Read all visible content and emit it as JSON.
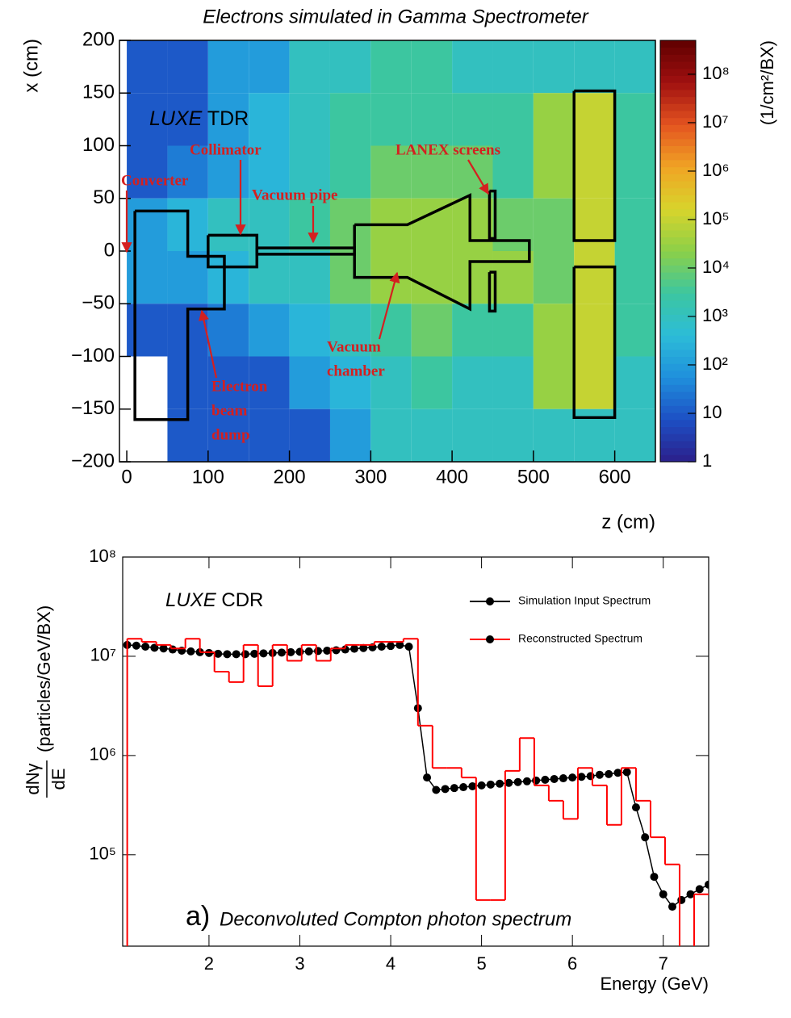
{
  "chart_data": [
    {
      "type": "heatmap",
      "title": "Electrons simulated in Gamma Spectrometer",
      "xlabel": "z (cm)",
      "ylabel": "x (cm)",
      "zlabel": "(1/cm²/BX)",
      "experiment": "LUXE",
      "document": "TDR",
      "xlim": [
        -9,
        650
      ],
      "ylim": [
        -200,
        200
      ],
      "zlim": [
        1,
        500000000
      ],
      "log_z": true,
      "xticks": [
        0,
        100,
        200,
        300,
        400,
        500,
        600
      ],
      "yticks": [
        {
          "value": -200,
          "label": "−200"
        },
        {
          "value": -150,
          "label": "−150"
        },
        {
          "value": -100,
          "label": "−100"
        },
        {
          "value": -50,
          "label": "−50"
        },
        0,
        50,
        100,
        150,
        200
      ],
      "zticks": [
        1,
        10,
        {
          "value": 100,
          "label": "10²"
        },
        {
          "value": 1000,
          "label": "10³"
        },
        {
          "value": 10000,
          "label": "10⁴"
        },
        {
          "value": 100000,
          "label": "10⁵"
        },
        {
          "value": 1000000,
          "label": "10⁶"
        },
        {
          "value": 10000000,
          "label": "10⁷"
        },
        {
          "value": 100000000,
          "label": "10⁸"
        }
      ],
      "colors": [
        "#2b1f8a",
        "#1d4fc4",
        "#1f8fdc",
        "#2cbcd8",
        "#3cc6a0",
        "#8cd048",
        "#d8d42c",
        "#f0a424",
        "#e45420",
        "#a01010",
        "#600000"
      ],
      "x_edges": [
        0,
        50,
        100,
        150,
        200,
        250,
        300,
        350,
        400,
        450,
        500,
        550,
        600,
        650
      ],
      "y_edges": [
        200,
        150,
        100,
        50,
        0,
        -50,
        -100,
        -150,
        -200
      ],
      "values": [
        [
          10,
          10,
          100,
          100,
          1000,
          1000,
          3000,
          3000,
          1000,
          1000,
          1000,
          1000,
          1000
        ],
        [
          10,
          10,
          100,
          300,
          1000,
          3000,
          3000,
          3000,
          3000,
          3000,
          30000,
          100000,
          3000
        ],
        [
          10,
          30,
          100,
          300,
          1000,
          3000,
          10000,
          10000,
          10000,
          3000,
          30000,
          100000,
          3000
        ],
        [
          100,
          300,
          1000,
          1000,
          3000,
          10000,
          30000,
          30000,
          30000,
          10000,
          10000,
          100000,
          3000
        ],
        [
          100,
          100,
          300,
          1000,
          1000,
          10000,
          30000,
          30000,
          30000,
          30000,
          10000,
          100000,
          3000
        ],
        [
          10,
          10,
          30,
          100,
          300,
          1000,
          3000,
          10000,
          3000,
          3000,
          30000,
          100000,
          3000
        ],
        [
          null,
          10,
          10,
          10,
          100,
          300,
          1000,
          3000,
          1000,
          1000,
          30000,
          100000,
          1000
        ],
        [
          null,
          10,
          10,
          10,
          10,
          100,
          1000,
          1000,
          1000,
          1000,
          1000,
          1000,
          1000
        ]
      ],
      "shapes": [
        {
          "z": [
            10,
            75,
            75,
            120,
            120,
            75,
            75,
            10,
            10
          ],
          "x": [
            38,
            38,
            -5,
            -5,
            -55,
            -55,
            -160,
            -160,
            38
          ]
        },
        {
          "z": [
            100,
            160,
            160,
            100,
            100
          ],
          "x": [
            15,
            15,
            -15,
            -15,
            15
          ]
        },
        {
          "z": [
            160,
            280,
            280,
            160,
            160
          ],
          "x": [
            3,
            3,
            -3,
            -3,
            3
          ]
        },
        {
          "z": [
            280,
            345,
            422,
            422,
            495,
            495,
            422,
            422,
            345,
            280,
            280
          ],
          "x": [
            25,
            25,
            53,
            10,
            10,
            -10,
            -10,
            -55,
            -25,
            -25,
            25
          ]
        },
        {
          "z": [
            446,
            453,
            453,
            446,
            446
          ],
          "x": [
            57,
            57,
            12,
            12,
            57
          ]
        },
        {
          "z": [
            446,
            453,
            453,
            446,
            446
          ],
          "x": [
            -20,
            -20,
            -57,
            -57,
            -20
          ]
        },
        {
          "z": [
            550,
            600,
            600,
            550,
            550
          ],
          "x": [
            152,
            152,
            10,
            10,
            152
          ]
        },
        {
          "z": [
            550,
            600,
            600,
            550,
            550
          ],
          "x": [
            -15,
            -15,
            -158,
            -158,
            -15
          ]
        }
      ],
      "annotations": [
        [
          "Converter"
        ],
        [
          "Collimator"
        ],
        [
          "Vacuum pipe"
        ],
        [
          "LANEX screens"
        ],
        [
          "Vacuum",
          "chamber"
        ],
        [
          "Electron",
          "beam",
          "dump"
        ]
      ]
    },
    {
      "type": "line",
      "xlabel": "Energy (GeV)",
      "ylabel": {
        "numerator": "dNγ",
        "denominator": "dE",
        "unit": "(particles/GeV/BX)"
      },
      "experiment": "LUXE",
      "document": "CDR",
      "panel": "a)",
      "caption": "Deconvoluted Compton photon spectrum",
      "legend": "upper right",
      "xlim": [
        1.05,
        7.5
      ],
      "ylim": [
        12000,
        100000000
      ],
      "log_y": true,
      "xticks": [
        2,
        3,
        4,
        5,
        6,
        7
      ],
      "yticks": [
        {
          "value": 100000,
          "label": "10⁵"
        },
        {
          "value": 1000000,
          "label": "10⁶"
        },
        {
          "value": 10000000,
          "label": "10⁷"
        },
        {
          "value": 100000000,
          "label": "10⁸"
        }
      ],
      "series": [
        {
          "name": "Simulation Input Spectrum",
          "color": "#000000",
          "x": [
            1.1,
            1.2,
            1.3,
            1.4,
            1.5,
            1.6,
            1.7,
            1.8,
            1.9,
            2.0,
            2.1,
            2.2,
            2.3,
            2.4,
            2.5,
            2.6,
            2.7,
            2.8,
            2.9,
            3.0,
            3.1,
            3.2,
            3.3,
            3.4,
            3.5,
            3.6,
            3.7,
            3.8,
            3.9,
            4.0,
            4.1,
            4.2,
            4.3,
            4.4,
            4.5,
            4.6,
            4.7,
            4.8,
            4.9,
            5.0,
            5.1,
            5.2,
            5.3,
            5.4,
            5.5,
            5.6,
            5.7,
            5.8,
            5.9,
            6.0,
            6.1,
            6.2,
            6.3,
            6.4,
            6.5,
            6.6,
            6.7,
            6.8,
            6.9,
            7.0,
            7.1,
            7.2,
            7.3,
            7.4,
            7.5
          ],
          "values": [
            13000000,
            12800000,
            12500000,
            12200000,
            12000000,
            11700000,
            11400000,
            11200000,
            11000000,
            10800000,
            10600000,
            10500000,
            10500000,
            10500000,
            10600000,
            10700000,
            10800000,
            10900000,
            11000000,
            11100000,
            11200000,
            11300000,
            11400000,
            11500000,
            11700000,
            11900000,
            12100000,
            12300000,
            12500000,
            12700000,
            13000000,
            12500000,
            3000000,
            600000,
            450000,
            460000,
            470000,
            480000,
            490000,
            500000,
            510000,
            520000,
            530000,
            540000,
            550000,
            560000,
            570000,
            580000,
            590000,
            600000,
            610000,
            620000,
            640000,
            650000,
            670000,
            680000,
            300000,
            150000,
            60000,
            40000,
            30000,
            35000,
            40000,
            45000,
            50000
          ]
        },
        {
          "name": "Reconstructed Spectrum",
          "color": "#ff0000",
          "bins": [
            1.1,
            1.26,
            1.42,
            1.58,
            1.74,
            1.9,
            2.06,
            2.22,
            2.38,
            2.54,
            2.7,
            2.86,
            3.02,
            3.18,
            3.34,
            3.5,
            3.66,
            3.82,
            3.98,
            4.14,
            4.3,
            4.46,
            4.62,
            4.78,
            4.94,
            5.1,
            5.26,
            5.42,
            5.58,
            5.74,
            5.9,
            6.06,
            6.22,
            6.38,
            6.54,
            6.7,
            6.86,
            7.02,
            7.18,
            7.34,
            7.5
          ],
          "values": [
            15000000,
            14000000,
            13000000,
            12000000,
            15000000,
            11000000,
            7000000,
            5500000,
            13000000,
            5000000,
            13000000,
            9000000,
            13000000,
            9000000,
            12000000,
            13000000,
            13000000,
            14000000,
            14000000,
            15000000,
            2000000,
            750000,
            750000,
            600000,
            35000,
            35000,
            700000,
            1500000,
            500000,
            350000,
            230000,
            750000,
            500000,
            200000,
            750000,
            350000,
            150000,
            80000,
            10000,
            40000
          ]
        }
      ]
    }
  ]
}
